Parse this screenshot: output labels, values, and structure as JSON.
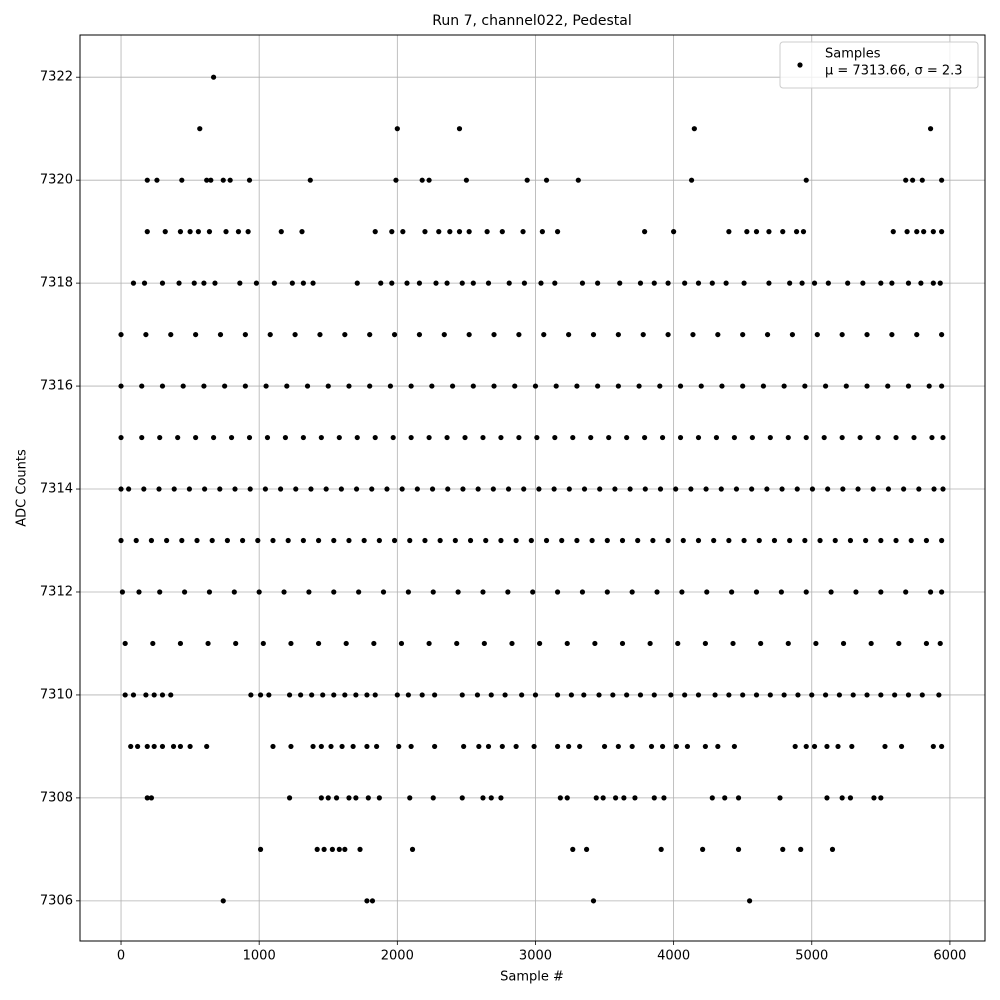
{
  "chart_data": {
    "type": "scatter",
    "title": "Run 7, channel022, Pedestal",
    "x_label": "Sample #",
    "y_label": "ADC Counts",
    "xlim": [
      -297,
      6254
    ],
    "ylim": [
      7305.22,
      7322.82
    ],
    "xticks": [
      0,
      1000,
      2000,
      3000,
      4000,
      5000,
      6000
    ],
    "yticks": [
      7306,
      7308,
      7310,
      7312,
      7314,
      7316,
      7318,
      7320,
      7322
    ],
    "grid": true,
    "legend_position": "upper right",
    "legend_note": "μ = 7313.66, σ = 2.3",
    "series": [
      {
        "name": "Samples",
        "color": "#000000",
        "groups": [
          {
            "value": 7322,
            "x": [
              670
            ]
          },
          {
            "value": 7321,
            "x": [
              570,
              2000,
              2450,
              4150,
              5860
            ]
          },
          {
            "value": 7320,
            "x": [
              190,
              260,
              440,
              620,
              650,
              740,
              790,
              930,
              1370,
              1990,
              2180,
              2230,
              2500,
              2940,
              3080,
              3310,
              4130,
              4960,
              5680,
              5730,
              5800,
              5940
            ]
          },
          {
            "value": 7319,
            "x": [
              190,
              320,
              430,
              500,
              560,
              640,
              760,
              850,
              920,
              1160,
              1310,
              1840,
              1960,
              2040,
              2200,
              2300,
              2380,
              2450,
              2520,
              2650,
              2760,
              2910,
              3050,
              3160,
              3790,
              4000,
              4400,
              4530,
              4600,
              4690,
              4790,
              4890,
              4940,
              5590,
              5690,
              5760,
              5810,
              5880,
              5940
            ]
          },
          {
            "value": 7318,
            "x": [
              90,
              170,
              300,
              420,
              530,
              600,
              680,
              860,
              980,
              1110,
              1240,
              1320,
              1390,
              1710,
              1880,
              1960,
              2070,
              2160,
              2280,
              2360,
              2470,
              2550,
              2660,
              2810,
              2920,
              3040,
              3140,
              3340,
              3450,
              3610,
              3760,
              3860,
              3960,
              4080,
              4180,
              4280,
              4380,
              4510,
              4690,
              4840,
              4930,
              5020,
              5120,
              5260,
              5370,
              5500,
              5580,
              5700,
              5790,
              5880,
              5930
            ]
          },
          {
            "value": 7317,
            "x": [
              0,
              180,
              360,
              540,
              720,
              900,
              1080,
              1260,
              1440,
              1620,
              1800,
              1980,
              2160,
              2340,
              2520,
              2700,
              2880,
              3060,
              3240,
              3420,
              3600,
              3780,
              3960,
              4140,
              4320,
              4500,
              4680,
              4860,
              5040,
              5220,
              5400,
              5580,
              5760,
              5940
            ]
          },
          {
            "value": 7316,
            "x": [
              0,
              150,
              300,
              450,
              600,
              750,
              900,
              1050,
              1200,
              1350,
              1500,
              1650,
              1800,
              1950,
              2100,
              2250,
              2400,
              2550,
              2700,
              2850,
              3000,
              3150,
              3300,
              3450,
              3600,
              3750,
              3900,
              4050,
              4200,
              4350,
              4500,
              4650,
              4800,
              4950,
              5100,
              5250,
              5400,
              5550,
              5700,
              5850,
              5940
            ]
          },
          {
            "value": 7315,
            "x": [
              0,
              150,
              280,
              410,
              540,
              670,
              800,
              930,
              1060,
              1190,
              1320,
              1450,
              1580,
              1710,
              1840,
              1970,
              2100,
              2230,
              2360,
              2490,
              2620,
              2750,
              2880,
              3010,
              3140,
              3270,
              3400,
              3530,
              3660,
              3790,
              3920,
              4050,
              4180,
              4310,
              4440,
              4570,
              4700,
              4830,
              4960,
              5090,
              5220,
              5350,
              5480,
              5610,
              5740,
              5870,
              5950
            ]
          },
          {
            "value": 7314,
            "x": [
              0,
              55,
              165,
              275,
              385,
              495,
              605,
              715,
              825,
              935,
              1045,
              1155,
              1265,
              1375,
              1485,
              1595,
              1705,
              1815,
              1925,
              2035,
              2145,
              2255,
              2365,
              2475,
              2585,
              2695,
              2805,
              2915,
              3025,
              3135,
              3245,
              3355,
              3465,
              3575,
              3685,
              3795,
              3905,
              4015,
              4125,
              4235,
              4345,
              4455,
              4565,
              4675,
              4785,
              4895,
              5005,
              5115,
              5225,
              5335,
              5445,
              5555,
              5665,
              5775,
              5885,
              5950
            ]
          },
          {
            "value": 7313,
            "x": [
              0,
              110,
              220,
              330,
              440,
              550,
              660,
              770,
              880,
              990,
              1100,
              1210,
              1320,
              1430,
              1540,
              1650,
              1760,
              1870,
              1980,
              2090,
              2200,
              2310,
              2420,
              2530,
              2640,
              2750,
              2860,
              2970,
              3080,
              3190,
              3300,
              3410,
              3520,
              3630,
              3740,
              3850,
              3960,
              4070,
              4180,
              4290,
              4400,
              4510,
              4620,
              4730,
              4840,
              4950,
              5060,
              5170,
              5280,
              5390,
              5500,
              5610,
              5720,
              5830,
              5940
            ]
          },
          {
            "value": 7312,
            "x": [
              10,
              130,
              280,
              460,
              640,
              820,
              1000,
              1180,
              1360,
              1540,
              1720,
              1900,
              2080,
              2260,
              2440,
              2620,
              2800,
              2980,
              3160,
              3340,
              3520,
              3700,
              3880,
              4060,
              4240,
              4420,
              4600,
              4780,
              4960,
              5140,
              5320,
              5500,
              5680,
              5860,
              5940
            ]
          },
          {
            "value": 7311,
            "x": [
              30,
              230,
              430,
              630,
              830,
              1030,
              1230,
              1430,
              1630,
              1830,
              2030,
              2230,
              2430,
              2630,
              2830,
              3030,
              3230,
              3430,
              3630,
              3830,
              4030,
              4230,
              4430,
              4630,
              4830,
              5030,
              5230,
              5430,
              5630,
              5830,
              5930
            ]
          },
          {
            "value": 7310,
            "x": [
              30,
              90,
              180,
              240,
              300,
              360,
              940,
              1010,
              1070,
              1220,
              1300,
              1380,
              1460,
              1540,
              1620,
              1700,
              1780,
              1840,
              2000,
              2080,
              2180,
              2270,
              2470,
              2580,
              2680,
              2780,
              2900,
              3000,
              3160,
              3260,
              3350,
              3460,
              3560,
              3660,
              3760,
              3860,
              3980,
              4080,
              4180,
              4300,
              4400,
              4500,
              4600,
              4700,
              4800,
              4900,
              5000,
              5100,
              5200,
              5300,
              5400,
              5500,
              5600,
              5700,
              5800,
              5920
            ]
          },
          {
            "value": 7309,
            "x": [
              70,
              120,
              190,
              240,
              300,
              380,
              430,
              500,
              620,
              1100,
              1230,
              1390,
              1450,
              1520,
              1600,
              1680,
              1780,
              1850,
              2010,
              2100,
              2270,
              2480,
              2590,
              2660,
              2760,
              2860,
              2990,
              3160,
              3240,
              3320,
              3500,
              3600,
              3700,
              3840,
              3920,
              4020,
              4100,
              4230,
              4320,
              4440,
              4880,
              4960,
              5020,
              5110,
              5190,
              5290,
              5530,
              5650,
              5880,
              5940
            ]
          },
          {
            "value": 7308,
            "x": [
              190,
              220,
              1220,
              1450,
              1500,
              1560,
              1650,
              1700,
              1790,
              1870,
              2090,
              2260,
              2470,
              2620,
              2680,
              2750,
              3180,
              3230,
              3440,
              3490,
              3580,
              3640,
              3720,
              3860,
              3930,
              4280,
              4370,
              4470,
              4770,
              5110,
              5220,
              5280,
              5450,
              5500
            ]
          },
          {
            "value": 7307,
            "x": [
              1010,
              1420,
              1470,
              1530,
              1580,
              1620,
              1730,
              2110,
              3270,
              3370,
              3910,
              4210,
              4470,
              4790,
              4920,
              5150
            ]
          },
          {
            "value": 7306,
            "x": [
              740,
              1780,
              1820,
              3420,
              4550
            ]
          }
        ]
      }
    ]
  }
}
